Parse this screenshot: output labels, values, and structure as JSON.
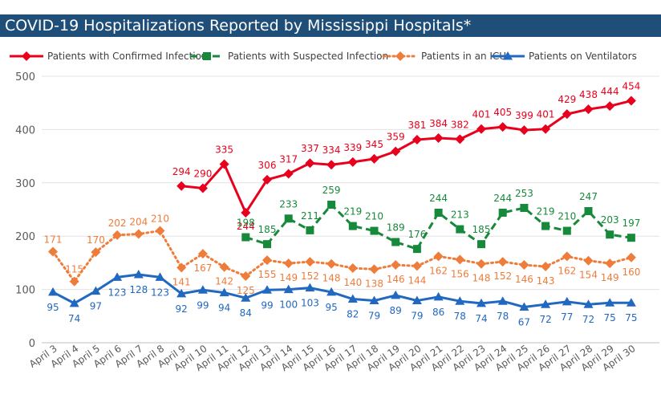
{
  "header": {
    "title": "COVID-19 Hospitalizations Reported by Mississippi Hospitals*"
  },
  "chart_data": {
    "type": "line",
    "title": "COVID-19 Hospitalizations Reported by Mississippi Hospitals*",
    "xlabel": "",
    "ylabel": "",
    "ylim": [
      0,
      500
    ],
    "yticks": [
      0,
      100,
      200,
      300,
      400,
      500
    ],
    "grid": "horizontal",
    "legend_position": "top",
    "categories": [
      "April 3",
      "April 4",
      "April 5",
      "April 6",
      "April 7",
      "April 8",
      "April 9",
      "April 10",
      "April 11",
      "April 12",
      "April 13",
      "April 14",
      "April 15",
      "April 16",
      "April 17",
      "April 18",
      "April 19",
      "April 20",
      "April 21",
      "April 22",
      "April 23",
      "April 24",
      "April 25",
      "April 26",
      "April 27",
      "April 28",
      "April 29",
      "April 30"
    ],
    "series": [
      {
        "name": "Patients with Confirmed Infection",
        "color": "#e8001c",
        "line_style": "solid",
        "marker": "diamond",
        "values": [
          null,
          null,
          null,
          null,
          null,
          null,
          294,
          290,
          335,
          244,
          306,
          317,
          337,
          334,
          339,
          345,
          359,
          381,
          384,
          382,
          401,
          405,
          399,
          401,
          429,
          438,
          444,
          454
        ]
      },
      {
        "name": "Patients with Suspected Infection",
        "color": "#168a3a",
        "line_style": "dashed",
        "marker": "square",
        "values": [
          null,
          null,
          null,
          null,
          null,
          null,
          null,
          null,
          null,
          198,
          185,
          233,
          211,
          259,
          219,
          210,
          189,
          176,
          244,
          213,
          185,
          244,
          253,
          219,
          210,
          247,
          203,
          197
        ]
      },
      {
        "name": "Patients in an ICU",
        "color": "#ee7c3a",
        "line_style": "dotted",
        "marker": "diamond",
        "values": [
          171,
          115,
          170,
          202,
          204,
          210,
          141,
          167,
          142,
          125,
          155,
          149,
          152,
          148,
          140,
          138,
          146,
          144,
          162,
          156,
          148,
          152,
          146,
          143,
          162,
          154,
          149,
          160
        ]
      },
      {
        "name": "Patients on Ventilators",
        "color": "#2168c0",
        "line_style": "solid",
        "marker": "triangle",
        "values": [
          95,
          74,
          97,
          123,
          128,
          123,
          92,
          99,
          94,
          84,
          99,
          100,
          103,
          95,
          82,
          79,
          89,
          79,
          86,
          78,
          74,
          78,
          67,
          72,
          77,
          72,
          75,
          75
        ]
      }
    ]
  }
}
